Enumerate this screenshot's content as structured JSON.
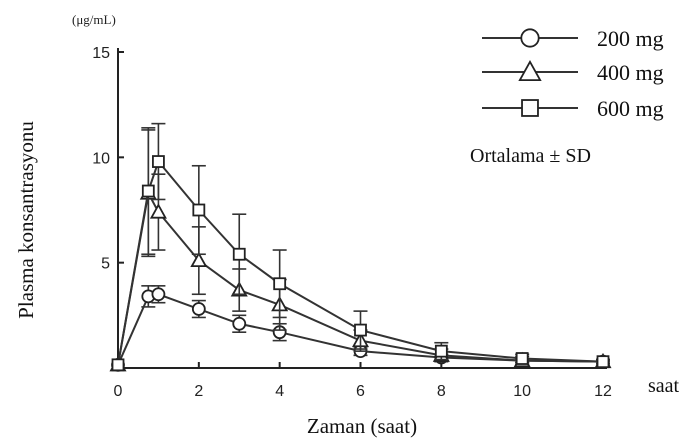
{
  "chart_data": {
    "type": "line",
    "xlabel": "Zaman (saat)",
    "x_unit": "saat",
    "ylabel": "Plasma konsantrasyonu",
    "y_unit": "(μg/mL)",
    "xlim": [
      0,
      12
    ],
    "ylim": [
      0,
      15
    ],
    "xticks": [
      0,
      2,
      4,
      6,
      8,
      10,
      12
    ],
    "yticks": [
      5,
      10,
      15
    ],
    "legend_position": "top-right",
    "grid": false,
    "annotation": "Ortalama ± SD",
    "series": [
      {
        "name": "200 mg",
        "marker": "circle",
        "x": [
          0,
          0.75,
          1,
          2,
          3,
          4,
          6,
          8,
          10,
          12
        ],
        "y": [
          0.15,
          3.4,
          3.5,
          2.8,
          2.1,
          1.7,
          0.8,
          0.5,
          0.35,
          0.3
        ],
        "sd": [
          0,
          0.5,
          0.4,
          0.4,
          0.4,
          0.4,
          0.2,
          0.15,
          0.1,
          0.1
        ]
      },
      {
        "name": "400 mg",
        "marker": "triangle",
        "x": [
          0,
          0.75,
          1,
          2,
          3,
          4,
          6,
          8,
          10,
          12
        ],
        "y": [
          0.15,
          8.3,
          7.4,
          5.1,
          3.7,
          3.0,
          1.3,
          0.6,
          0.35,
          0.3
        ],
        "sd": [
          0,
          3.0,
          1.8,
          1.6,
          1.0,
          1.2,
          0.5,
          0.3,
          0.2,
          0.1
        ]
      },
      {
        "name": "600 mg",
        "marker": "square",
        "x": [
          0,
          0.75,
          1,
          2,
          3,
          4,
          6,
          8,
          10,
          12
        ],
        "y": [
          0.15,
          8.4,
          9.8,
          7.5,
          5.4,
          4.0,
          1.8,
          0.8,
          0.45,
          0.3
        ],
        "sd": [
          0,
          3.0,
          1.8,
          2.1,
          1.9,
          1.6,
          0.9,
          0.4,
          0.2,
          0.1
        ]
      }
    ]
  }
}
